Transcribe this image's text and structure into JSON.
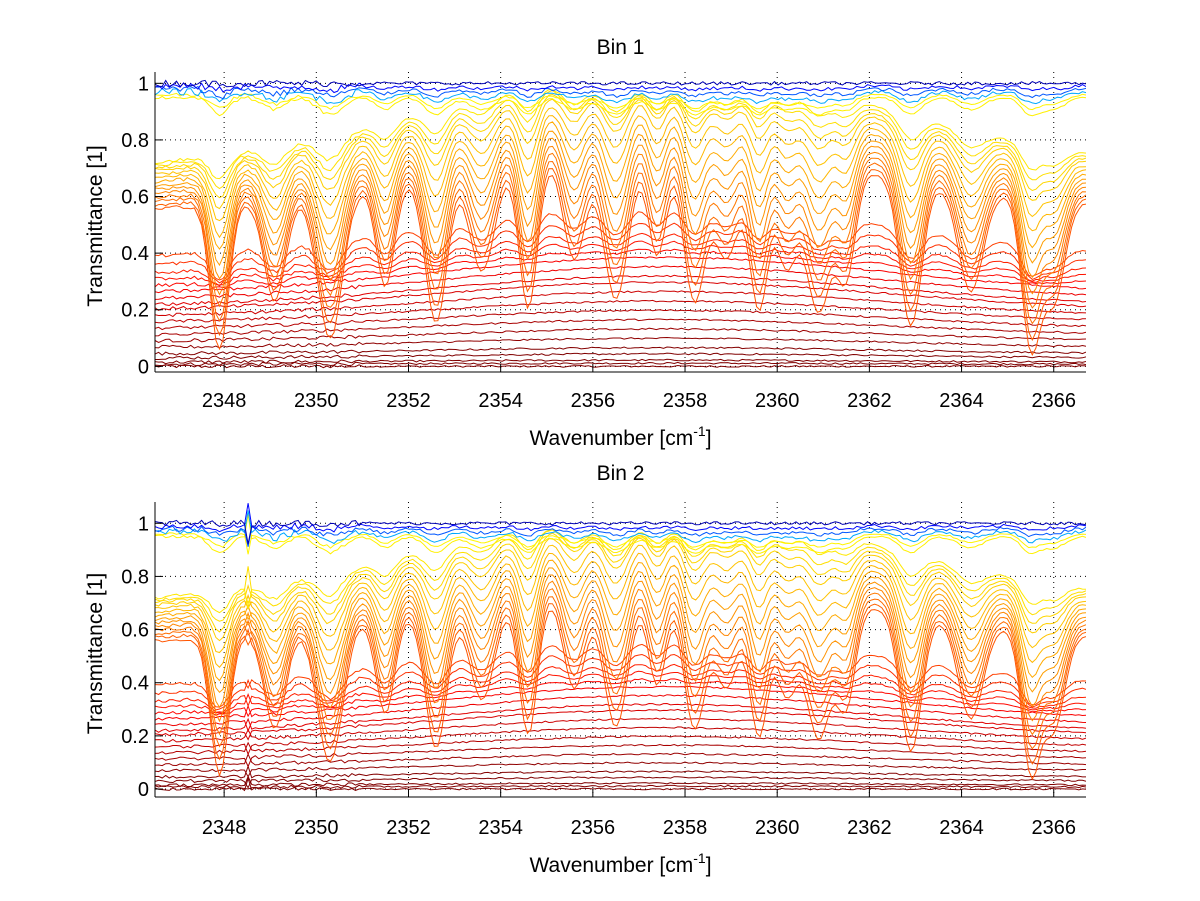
{
  "chart_data": [
    {
      "type": "line",
      "title": "Bin 1",
      "xlabel": "Wavenumber [cm",
      "xlabel_sup": "-1",
      "xlabel_end": "]",
      "ylabel": "Transmittance [1]",
      "xlim": [
        2346.5,
        2366.7
      ],
      "ylim": [
        -0.02,
        1.04
      ],
      "xticks": [
        2348,
        2350,
        2352,
        2354,
        2356,
        2358,
        2360,
        2362,
        2364,
        2366
      ],
      "yticks": [
        0,
        0.2,
        0.4,
        0.6,
        0.8,
        1
      ],
      "ytick_labels": [
        "0",
        "0.2",
        "0.4",
        "0.6",
        "0.8",
        "1"
      ],
      "grid": true,
      "colormap": "jet",
      "num_series": 40,
      "absorption_lines": [
        2347.9,
        2349.1,
        2350.3,
        2351.5,
        2352.6,
        2353.6,
        2354.6,
        2355.6,
        2356.5,
        2357.4,
        2358.2,
        2358.9,
        2359.6,
        2360.2,
        2360.9,
        2361.5,
        2362.9,
        2364.2,
        2365.5,
        2366.0
      ],
      "baseline_levels": [
        1.0,
        0.99,
        0.98,
        0.97,
        0.96,
        0.95,
        0.93,
        0.91,
        0.89,
        0.87,
        0.84,
        0.81,
        0.78,
        0.75,
        0.72,
        0.69,
        0.66,
        0.63,
        0.6,
        0.57,
        0.52,
        0.48,
        0.44,
        0.41,
        0.38,
        0.35,
        0.32,
        0.29,
        0.27,
        0.24,
        0.21,
        0.18,
        0.15,
        0.12,
        0.09,
        0.06,
        0.04,
        0.02,
        0.01,
        0.0
      ],
      "spike": null
    },
    {
      "type": "line",
      "title": "Bin 2",
      "xlabel": "Wavenumber [cm",
      "xlabel_sup": "-1",
      "xlabel_end": "]",
      "ylabel": "Transmittance [1]",
      "xlim": [
        2346.5,
        2366.7
      ],
      "ylim": [
        -0.03,
        1.08
      ],
      "xticks": [
        2348,
        2350,
        2352,
        2354,
        2356,
        2358,
        2360,
        2362,
        2364,
        2366
      ],
      "yticks": [
        0,
        0.2,
        0.4,
        0.6,
        0.8,
        1
      ],
      "ytick_labels": [
        "0",
        "0.2",
        "0.4",
        "0.6",
        "0.8",
        "1"
      ],
      "grid": true,
      "colormap": "jet",
      "num_series": 40,
      "absorption_lines": [
        2347.9,
        2349.1,
        2350.3,
        2351.5,
        2352.6,
        2353.6,
        2354.6,
        2355.6,
        2356.5,
        2357.4,
        2358.2,
        2358.9,
        2359.6,
        2360.2,
        2360.9,
        2361.5,
        2362.9,
        2364.2,
        2365.5,
        2366.0
      ],
      "baseline_levels": [
        1.0,
        0.99,
        0.98,
        0.97,
        0.96,
        0.95,
        0.93,
        0.91,
        0.89,
        0.87,
        0.84,
        0.81,
        0.78,
        0.75,
        0.72,
        0.69,
        0.66,
        0.63,
        0.6,
        0.57,
        0.52,
        0.48,
        0.44,
        0.41,
        0.38,
        0.35,
        0.32,
        0.29,
        0.27,
        0.24,
        0.21,
        0.18,
        0.15,
        0.12,
        0.09,
        0.06,
        0.04,
        0.02,
        0.01,
        0.0
      ],
      "spike": 2348.5
    }
  ]
}
